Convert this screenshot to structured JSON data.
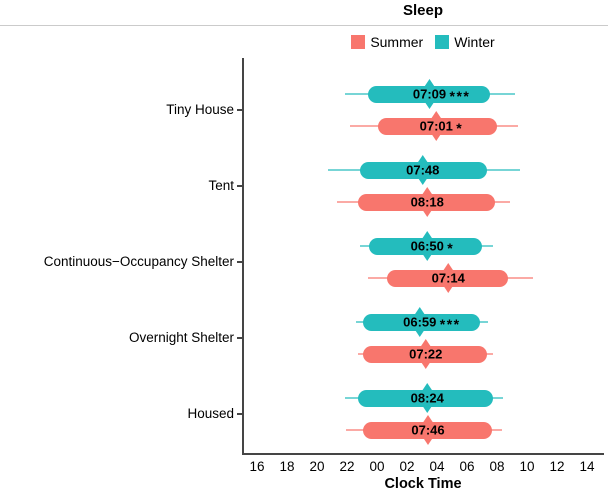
{
  "title": "Sleep",
  "legend": {
    "items": [
      {
        "label": "Summer",
        "color": "#F8766D"
      },
      {
        "label": "Winter",
        "color": "#24BCBD"
      }
    ]
  },
  "x_axis": {
    "label": "Clock Time",
    "ticks": [
      "16",
      "18",
      "20",
      "22",
      "00",
      "02",
      "04",
      "06",
      "08",
      "10",
      "12",
      "14"
    ]
  },
  "y_axis": {
    "categories": [
      "Tiny House",
      "Tent",
      "Continuous−Occupancy Shelter",
      "Overnight Shelter",
      "Housed"
    ]
  },
  "colors": {
    "summer": "#F8766D",
    "winter": "#24BCBD",
    "axis": "#454545",
    "divider": "#cbcbcb",
    "label_text": "#000000"
  },
  "chart_data": {
    "type": "bar",
    "subtype": "horizontal-pointrange (sleep interval on clock-time axis, diamond = midpoint, label = sleep duration)",
    "title": "Sleep",
    "xlabel": "Clock Time",
    "x_ticks": [
      "16",
      "18",
      "20",
      "22",
      "00",
      "02",
      "04",
      "06",
      "08",
      "10",
      "12",
      "14"
    ],
    "x_axis_note": "t values below are hours after 16:00; axis spans roughly 15:00 to 15:00 next day",
    "categories": [
      "Tiny House",
      "Tent",
      "Continuous−Occupancy Shelter",
      "Overnight Shelter",
      "Housed"
    ],
    "series_names": [
      "Winter",
      "Summer"
    ],
    "legend_position": "top-center",
    "grid": false,
    "groups": [
      {
        "category": "Tiny House",
        "bars": [
          {
            "series": "Winter",
            "duration": "07:09",
            "significance": "***",
            "whisker": {
              "start": "21:51",
              "end": "09:12",
              "t": [
                5.85,
                17.2
              ]
            },
            "box": {
              "start": "23:24",
              "end": "07:30",
              "t": [
                7.4,
                15.5
              ]
            },
            "midpoint": {
              "clock": "03:30",
              "t": 11.5
            }
          },
          {
            "series": "Summer",
            "duration": "07:01",
            "significance": "*",
            "whisker": {
              "start": "22:12",
              "end": "09:24",
              "t": [
                6.2,
                17.4
              ]
            },
            "box": {
              "start": "00:03",
              "end": "08:00",
              "t": [
                8.05,
                16.0
              ]
            },
            "midpoint": {
              "clock": "03:57",
              "t": 11.95
            }
          }
        ]
      },
      {
        "category": "Tent",
        "bars": [
          {
            "series": "Winter",
            "duration": "07:48",
            "significance": "",
            "whisker": {
              "start": "20:45",
              "end": "09:33",
              "t": [
                4.75,
                17.55
              ]
            },
            "box": {
              "start": "22:51",
              "end": "07:21",
              "t": [
                6.85,
                15.35
              ]
            },
            "midpoint": {
              "clock": "03:03",
              "t": 11.05
            }
          },
          {
            "series": "Summer",
            "duration": "08:18",
            "significance": "",
            "whisker": {
              "start": "21:21",
              "end": "08:51",
              "t": [
                5.35,
                16.85
              ]
            },
            "box": {
              "start": "22:45",
              "end": "07:51",
              "t": [
                6.75,
                15.85
              ]
            },
            "midpoint": {
              "clock": "03:21",
              "t": 11.35
            }
          }
        ]
      },
      {
        "category": "Continuous−Occupancy Shelter",
        "bars": [
          {
            "series": "Winter",
            "duration": "06:50",
            "significance": "*",
            "whisker": {
              "start": "22:51",
              "end": "07:45",
              "t": [
                6.85,
                15.75
              ]
            },
            "box": {
              "start": "23:27",
              "end": "07:00",
              "t": [
                7.45,
                15.0
              ]
            },
            "midpoint": {
              "clock": "03:21",
              "t": 11.35
            }
          },
          {
            "series": "Summer",
            "duration": "07:14",
            "significance": "",
            "whisker": {
              "start": "23:24",
              "end": "10:24",
              "t": [
                7.4,
                18.4
              ]
            },
            "box": {
              "start": "00:39",
              "end": "08:45",
              "t": [
                8.65,
                16.75
              ]
            },
            "midpoint": {
              "clock": "04:45",
              "t": 12.75
            }
          }
        ]
      },
      {
        "category": "Overnight Shelter",
        "bars": [
          {
            "series": "Winter",
            "duration": "06:59",
            "significance": "***",
            "whisker": {
              "start": "22:36",
              "end": "07:24",
              "t": [
                6.6,
                15.4
              ]
            },
            "box": {
              "start": "23:03",
              "end": "06:51",
              "t": [
                7.05,
                14.85
              ]
            },
            "midpoint": {
              "clock": "02:51",
              "t": 10.85
            }
          },
          {
            "series": "Summer",
            "duration": "07:22",
            "significance": "",
            "whisker": {
              "start": "22:45",
              "end": "07:45",
              "t": [
                6.75,
                15.75
              ]
            },
            "box": {
              "start": "23:03",
              "end": "07:21",
              "t": [
                7.05,
                15.35
              ]
            },
            "midpoint": {
              "clock": "03:15",
              "t": 11.25
            }
          }
        ]
      },
      {
        "category": "Housed",
        "bars": [
          {
            "series": "Winter",
            "duration": "08:24",
            "significance": "",
            "whisker": {
              "start": "21:51",
              "end": "08:24",
              "t": [
                5.85,
                16.4
              ]
            },
            "box": {
              "start": "22:45",
              "end": "07:45",
              "t": [
                6.75,
                15.75
              ]
            },
            "midpoint": {
              "clock": "03:21",
              "t": 11.35
            }
          },
          {
            "series": "Summer",
            "duration": "07:46",
            "significance": "",
            "whisker": {
              "start": "21:57",
              "end": "08:21",
              "t": [
                5.95,
                16.35
              ]
            },
            "box": {
              "start": "23:03",
              "end": "07:39",
              "t": [
                7.05,
                15.65
              ]
            },
            "midpoint": {
              "clock": "03:24",
              "t": 11.4
            }
          }
        ]
      }
    ]
  }
}
